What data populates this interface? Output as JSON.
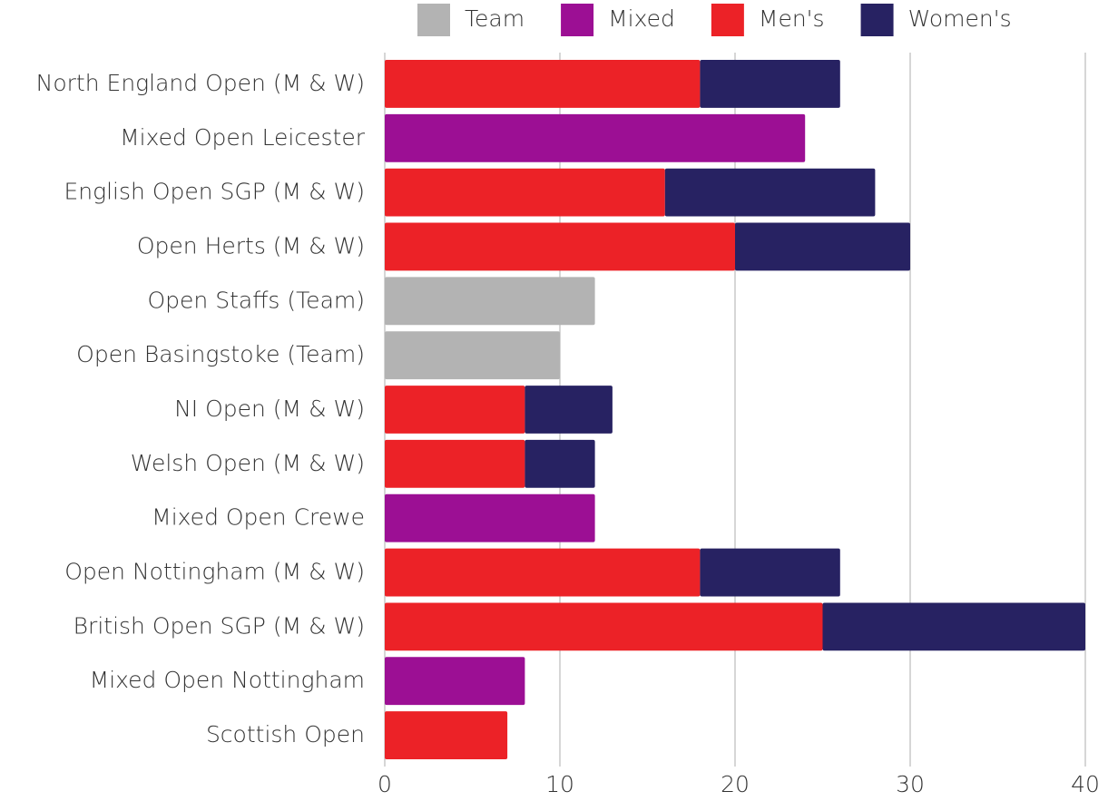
{
  "chart_data": {
    "type": "stacked_barh",
    "categories": [
      "North England Open (M & W)",
      "Mixed Open Leicester",
      "English Open SGP (M & W)",
      "Open Herts (M & W)",
      "Open Staffs (Team)",
      "Open Basingstoke (Team)",
      "NI Open (M & W)",
      "Welsh Open (M & W)",
      "Mixed Open Crewe",
      "Open Nottingham (M & W)",
      "British Open SGP (M & W)",
      "Mixed Open Nottingham",
      "Scottish Open"
    ],
    "series": [
      {
        "name": "Team",
        "color": "#b3b3b3",
        "values": [
          null,
          null,
          null,
          null,
          12,
          10,
          null,
          null,
          null,
          null,
          null,
          null,
          null
        ]
      },
      {
        "name": "Mixed",
        "color": "#9c0f94",
        "values": [
          null,
          24,
          null,
          null,
          null,
          null,
          null,
          null,
          12,
          null,
          null,
          8,
          null
        ]
      },
      {
        "name": "Men's",
        "color": "#ec2227",
        "values": [
          18,
          null,
          16,
          20,
          null,
          null,
          8,
          8,
          null,
          18,
          25,
          null,
          7
        ]
      },
      {
        "name": "Women's",
        "color": "#272262",
        "values": [
          8,
          null,
          12,
          10,
          null,
          null,
          5,
          4,
          null,
          8,
          15,
          null,
          null
        ]
      }
    ],
    "xlim": [
      0,
      40
    ],
    "xticks": [
      0,
      10,
      20,
      30,
      40
    ],
    "grid": true,
    "legend": "top"
  }
}
